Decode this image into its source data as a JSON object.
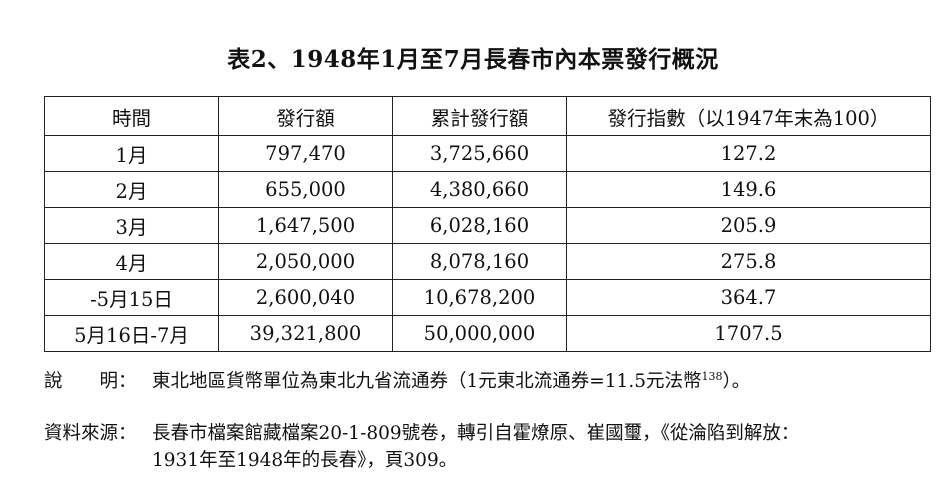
{
  "title": "表2、1948年1月至7月長春市內本票發行概況",
  "table": {
    "headers": [
      "時間",
      "發行額",
      "累計發行額",
      "發行指數（以1947年末為100）"
    ],
    "rows": [
      [
        "1月",
        "797,470",
        "3,725,660",
        "127.2"
      ],
      [
        "2月",
        "655,000",
        "4,380,660",
        "149.6"
      ],
      [
        "3月",
        "1,647,500",
        "6,028,160",
        "205.9"
      ],
      [
        "4月",
        "2,050,000",
        "8,078,160",
        "275.8"
      ],
      [
        "-5月15日",
        "2,600,040",
        "10,678,200",
        "364.7"
      ],
      [
        "5月16日-7月",
        "39,321,800",
        "50,000,000",
        "1707.5"
      ]
    ]
  },
  "notes": {
    "explain_label": "說　　明：",
    "explain_text": "東北地區貨幣單位為東北九省流通券（1元東北流通券=11.5元法幣",
    "explain_sup": "138",
    "explain_end": "）。",
    "source_label": "資料來源：",
    "source_line1": "長春市檔案館藏檔案20-1-809號卷，轉引自霍燎原、崔國璽，《從淪陷到解放：",
    "source_line2": "1931年至1948年的長春》，頁309。"
  }
}
